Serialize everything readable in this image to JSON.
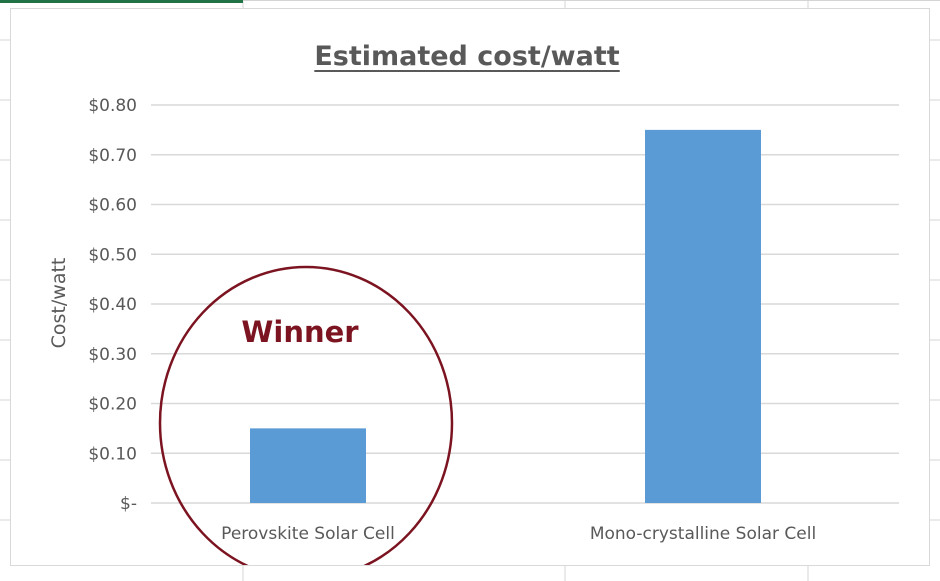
{
  "chart_data": {
    "type": "bar",
    "title": "Estimated cost/watt",
    "ylabel": "Cost/watt",
    "xlabel": "",
    "categories": [
      "Perovskite Solar Cell",
      "Mono-crystalline Solar Cell"
    ],
    "values": [
      0.15,
      0.75
    ],
    "ylim": [
      0,
      0.8
    ],
    "yticks": [
      0,
      0.1,
      0.2,
      0.3,
      0.4,
      0.5,
      0.6,
      0.7,
      0.8
    ],
    "ytick_labels": [
      "$-",
      "$0.10",
      "$0.20",
      "$0.30",
      "$0.40",
      "$0.50",
      "$0.60",
      "$0.70",
      "$0.80"
    ],
    "grid": true,
    "bar_color": "#5b9bd5",
    "gridline_color": "#d9d9d9",
    "annotation": {
      "text": "Winner",
      "target_category": "Perovskite Solar Cell",
      "shape": "ellipse",
      "color": "#7b1420"
    }
  }
}
